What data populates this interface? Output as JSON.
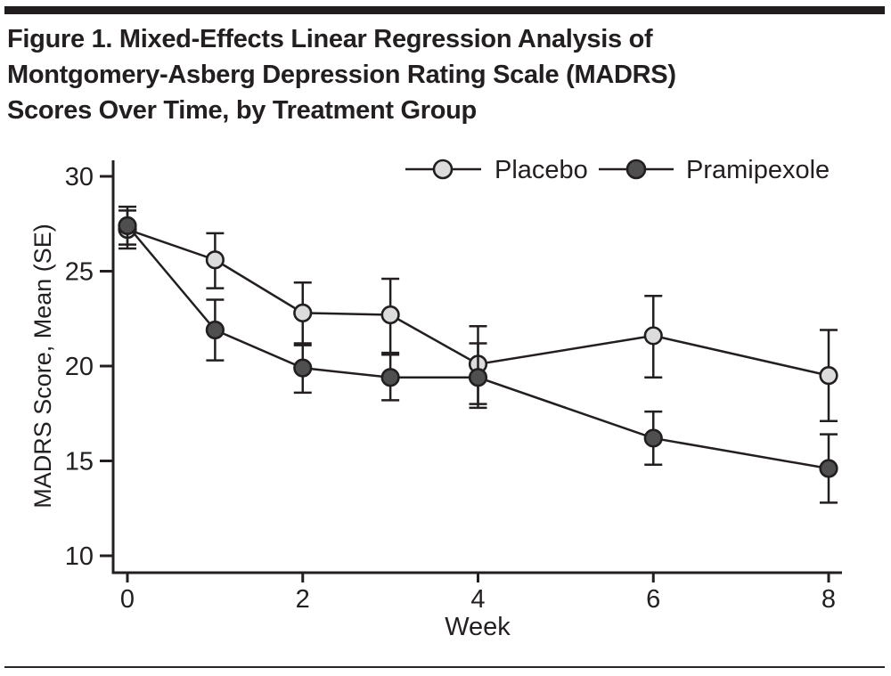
{
  "page": {
    "title_lines": [
      "Figure 1. Mixed-Effects Linear Regression Analysis of",
      "Montgomery-Asberg Depression Rating Scale (MADRS)",
      "Scores Over Time, by Treatment Group"
    ]
  },
  "colors": {
    "ink": "#231f20",
    "background": "#ffffff",
    "placebo_marker_fill": "#dcdcdc",
    "pramipexole_marker_fill": "#4f4f4f"
  },
  "chart_data": {
    "type": "line",
    "title": "Figure 1. Mixed-Effects Linear Regression Analysis of Montgomery-Asberg Depression Rating Scale (MADRS) Scores Over Time, by Treatment Group",
    "xlabel": "Week",
    "ylabel": "MADRS Score, Mean (SE)",
    "x": [
      0,
      1,
      2,
      3,
      4,
      6,
      8
    ],
    "x_ticks": [
      0,
      2,
      4,
      6,
      8
    ],
    "y_ticks": [
      30,
      25,
      20,
      15,
      10
    ],
    "xlim": [
      0,
      8
    ],
    "ylim": [
      10,
      30
    ],
    "grid": false,
    "error_bars": "SE",
    "legend_position": "top-inside",
    "series": [
      {
        "name": "Placebo",
        "marker": "circle-light-gray",
        "marker_fill": "#dcdcdc",
        "values": [
          27.2,
          25.6,
          22.8,
          22.7,
          20.1,
          21.6,
          19.5
        ],
        "err_lo": [
          26.2,
          24.1,
          21.1,
          20.7,
          18.0,
          19.4,
          17.1
        ],
        "err_hi": [
          28.2,
          27.0,
          24.4,
          24.6,
          22.1,
          23.7,
          21.9
        ]
      },
      {
        "name": "Pramipexole",
        "marker": "circle-dark-gray",
        "marker_fill": "#4f4f4f",
        "values": [
          27.4,
          21.9,
          19.9,
          19.4,
          19.4,
          16.2,
          14.6
        ],
        "err_lo": [
          26.4,
          20.3,
          18.6,
          18.2,
          17.8,
          14.8,
          12.8
        ],
        "err_hi": [
          28.4,
          23.5,
          21.2,
          20.6,
          21.2,
          17.6,
          16.4
        ]
      }
    ]
  }
}
